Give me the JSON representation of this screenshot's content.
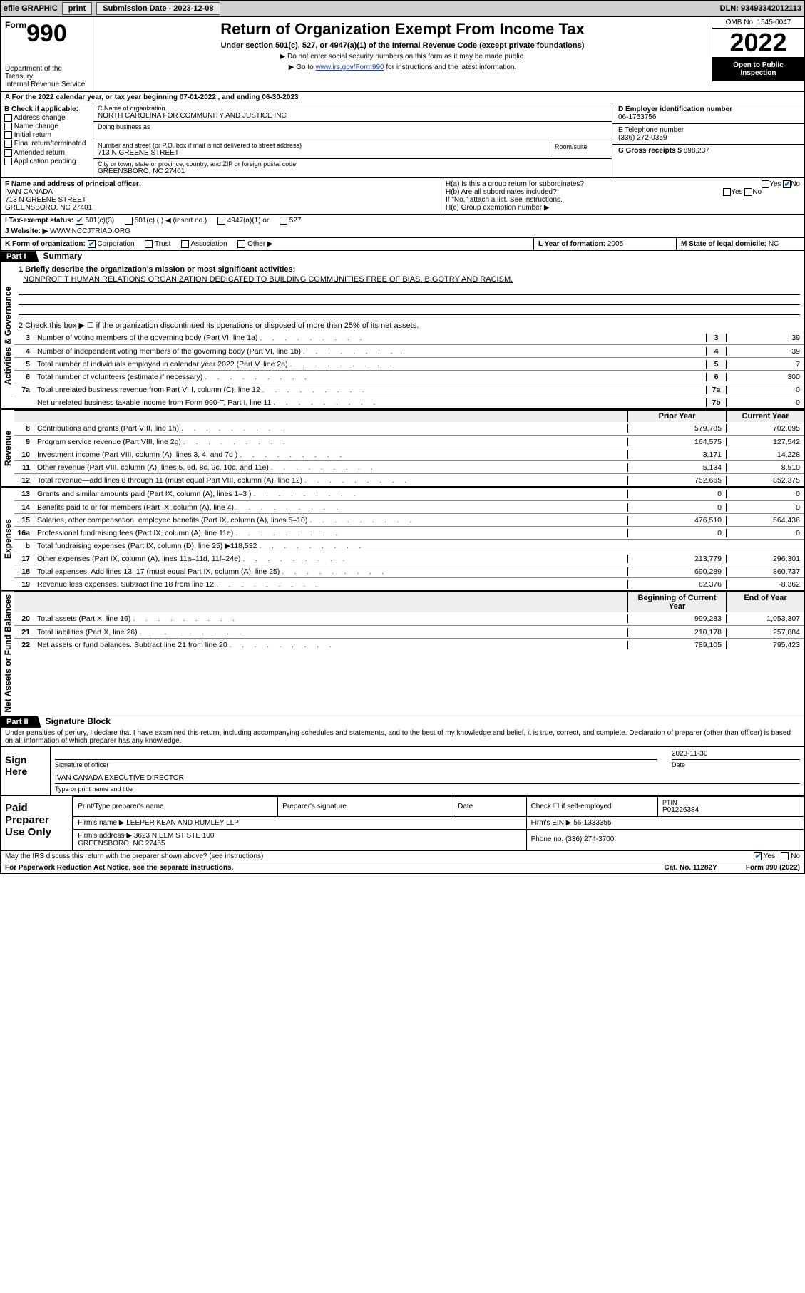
{
  "topbar": {
    "efile": "efile GRAPHIC",
    "print": "print",
    "subdate_label": "Submission Date - 2023-12-08",
    "dln": "DLN: 93493342012113"
  },
  "header": {
    "form_label": "Form",
    "form_num": "990",
    "dept": "Department of the Treasury\nInternal Revenue Service",
    "title": "Return of Organization Exempt From Income Tax",
    "sub": "Under section 501(c), 527, or 4947(a)(1) of the Internal Revenue Code (except private foundations)",
    "note1": "▶ Do not enter social security numbers on this form as it may be made public.",
    "note2_pre": "▶ Go to ",
    "note2_link": "www.irs.gov/Form990",
    "note2_post": " for instructions and the latest information.",
    "omb": "OMB No. 1545-0047",
    "year": "2022",
    "openpub": "Open to Public Inspection"
  },
  "period": {
    "text": "A For the 2022 calendar year, or tax year beginning 07-01-2022   , and ending 06-30-2023"
  },
  "boxB": {
    "label": "B Check if applicable:",
    "items": [
      "Address change",
      "Name change",
      "Initial return",
      "Final return/terminated",
      "Amended return",
      "Application pending"
    ]
  },
  "boxC": {
    "name_label": "C Name of organization",
    "name": "NORTH CAROLINA FOR COMMUNITY AND JUSTICE INC",
    "dba_label": "Doing business as",
    "addr_label": "Number and street (or P.O. box if mail is not delivered to street address)",
    "addr": "713 N GREENE STREET",
    "room_label": "Room/suite",
    "city_label": "City or town, state or province, country, and ZIP or foreign postal code",
    "city": "GREENSBORO, NC  27401"
  },
  "boxD": {
    "label": "D Employer identification number",
    "val": "06-1753756"
  },
  "boxE": {
    "label": "E Telephone number",
    "val": "(336) 272-0359"
  },
  "boxG": {
    "label": "G Gross receipts $",
    "val": "898,237"
  },
  "boxF": {
    "label": "F  Name and address of principal officer:",
    "name": "IVAN CANADA",
    "addr": "713 N GREENE STREET\nGREENSBORO, NC  27401"
  },
  "boxH": {
    "ha": "H(a)  Is this a group return for subordinates?",
    "hb": "H(b)  Are all subordinates included?",
    "hnote": "If \"No,\" attach a list. See instructions.",
    "hc": "H(c)  Group exemption number ▶"
  },
  "boxI": {
    "label": "I   Tax-exempt status:",
    "opts": [
      "501(c)(3)",
      "501(c) (  ) ◀ (insert no.)",
      "4947(a)(1) or",
      "527"
    ]
  },
  "boxJ": {
    "label": "J   Website: ▶",
    "val": "WWW.NCCJTRIAD.ORG"
  },
  "boxK": {
    "label": "K Form of organization:",
    "opts": [
      "Corporation",
      "Trust",
      "Association",
      "Other ▶"
    ]
  },
  "boxL": {
    "label": "L Year of formation:",
    "val": "2005"
  },
  "boxM": {
    "label": "M State of legal domicile:",
    "val": "NC"
  },
  "part1": {
    "bar": "Part I",
    "title": "Summary"
  },
  "summary": {
    "q1": "1   Briefly describe the organization's mission or most significant activities:",
    "mission": "NONPROFIT HUMAN RELATIONS ORGANIZATION DEDICATED TO BUILDING COMMUNITIES FREE OF BIAS, BIGOTRY AND RACISM.",
    "q2": "2   Check this box ▶ ☐  if the organization discontinued its operations or disposed of more than 25% of its net assets.",
    "lines_gov": [
      {
        "n": "3",
        "d": "Number of voting members of the governing body (Part VI, line 1a)",
        "box": "3",
        "v": "39"
      },
      {
        "n": "4",
        "d": "Number of independent voting members of the governing body (Part VI, line 1b)",
        "box": "4",
        "v": "39"
      },
      {
        "n": "5",
        "d": "Total number of individuals employed in calendar year 2022 (Part V, line 2a)",
        "box": "5",
        "v": "7"
      },
      {
        "n": "6",
        "d": "Total number of volunteers (estimate if necessary)",
        "box": "6",
        "v": "300"
      },
      {
        "n": "7a",
        "d": "Total unrelated business revenue from Part VIII, column (C), line 12",
        "box": "7a",
        "v": "0"
      },
      {
        "n": "",
        "d": "Net unrelated business taxable income from Form 990-T, Part I, line 11",
        "box": "7b",
        "v": "0"
      }
    ],
    "col_prior": "Prior Year",
    "col_curr": "Current Year",
    "rev": [
      {
        "n": "8",
        "d": "Contributions and grants (Part VIII, line 1h)",
        "p": "579,785",
        "c": "702,095"
      },
      {
        "n": "9",
        "d": "Program service revenue (Part VIII, line 2g)",
        "p": "164,575",
        "c": "127,542"
      },
      {
        "n": "10",
        "d": "Investment income (Part VIII, column (A), lines 3, 4, and 7d )",
        "p": "3,171",
        "c": "14,228"
      },
      {
        "n": "11",
        "d": "Other revenue (Part VIII, column (A), lines 5, 6d, 8c, 9c, 10c, and 11e)",
        "p": "5,134",
        "c": "8,510"
      },
      {
        "n": "12",
        "d": "Total revenue—add lines 8 through 11 (must equal Part VIII, column (A), line 12)",
        "p": "752,665",
        "c": "852,375"
      }
    ],
    "exp": [
      {
        "n": "13",
        "d": "Grants and similar amounts paid (Part IX, column (A), lines 1–3 )",
        "p": "0",
        "c": "0"
      },
      {
        "n": "14",
        "d": "Benefits paid to or for members (Part IX, column (A), line 4)",
        "p": "0",
        "c": "0"
      },
      {
        "n": "15",
        "d": "Salaries, other compensation, employee benefits (Part IX, column (A), lines 5–10)",
        "p": "476,510",
        "c": "564,436"
      },
      {
        "n": "16a",
        "d": "Professional fundraising fees (Part IX, column (A), line 11e)",
        "p": "0",
        "c": "0"
      },
      {
        "n": "b",
        "d": "Total fundraising expenses (Part IX, column (D), line 25) ▶118,532",
        "p": "",
        "c": ""
      },
      {
        "n": "17",
        "d": "Other expenses (Part IX, column (A), lines 11a–11d, 11f–24e)",
        "p": "213,779",
        "c": "296,301"
      },
      {
        "n": "18",
        "d": "Total expenses. Add lines 13–17 (must equal Part IX, column (A), line 25)",
        "p": "690,289",
        "c": "860,737"
      },
      {
        "n": "19",
        "d": "Revenue less expenses. Subtract line 18 from line 12",
        "p": "62,376",
        "c": "-8,362"
      }
    ],
    "col_beg": "Beginning of Current Year",
    "col_end": "End of Year",
    "net": [
      {
        "n": "20",
        "d": "Total assets (Part X, line 16)",
        "p": "999,283",
        "c": "1,053,307"
      },
      {
        "n": "21",
        "d": "Total liabilities (Part X, line 26)",
        "p": "210,178",
        "c": "257,884"
      },
      {
        "n": "22",
        "d": "Net assets or fund balances. Subtract line 21 from line 20",
        "p": "789,105",
        "c": "795,423"
      }
    ]
  },
  "vlabels": {
    "gov": "Activities & Governance",
    "rev": "Revenue",
    "exp": "Expenses",
    "net": "Net Assets or Fund Balances"
  },
  "part2": {
    "bar": "Part II",
    "title": "Signature Block"
  },
  "sig": {
    "decl": "Under penalties of perjury, I declare that I have examined this return, including accompanying schedules and statements, and to the best of my knowledge and belief, it is true, correct, and complete. Declaration of preparer (other than officer) is based on all information of which preparer has any knowledge.",
    "sign_here": "Sign Here",
    "sig_officer": "Signature of officer",
    "date": "2023-11-30",
    "date_label": "Date",
    "name": "IVAN CANADA  EXECUTIVE DIRECTOR",
    "name_label": "Type or print name and title"
  },
  "prep": {
    "label": "Paid Preparer Use Only",
    "h1": "Print/Type preparer's name",
    "h2": "Preparer's signature",
    "h3": "Date",
    "h4_a": "Check ☐ if self-employed",
    "h4_b": "PTIN",
    "ptin": "P01226384",
    "firm_label": "Firm's name    ▶",
    "firm": "LEEPER KEAN AND RUMLEY LLP",
    "ein_label": "Firm's EIN ▶",
    "ein": "56-1333355",
    "addr_label": "Firm's address ▶",
    "addr": "3623 N ELM ST STE 100\nGREENSBORO, NC  27455",
    "phone_label": "Phone no.",
    "phone": "(336) 274-3700"
  },
  "footer": {
    "q": "May the IRS discuss this return with the preparer shown above? (see instructions)",
    "yes": "Yes",
    "no": "No",
    "pra": "For Paperwork Reduction Act Notice, see the separate instructions.",
    "cat": "Cat. No. 11282Y",
    "form": "Form 990 (2022)"
  },
  "colors": {
    "accent": "#0b5fa5",
    "link": "#1a4aa8",
    "black": "#000000"
  }
}
